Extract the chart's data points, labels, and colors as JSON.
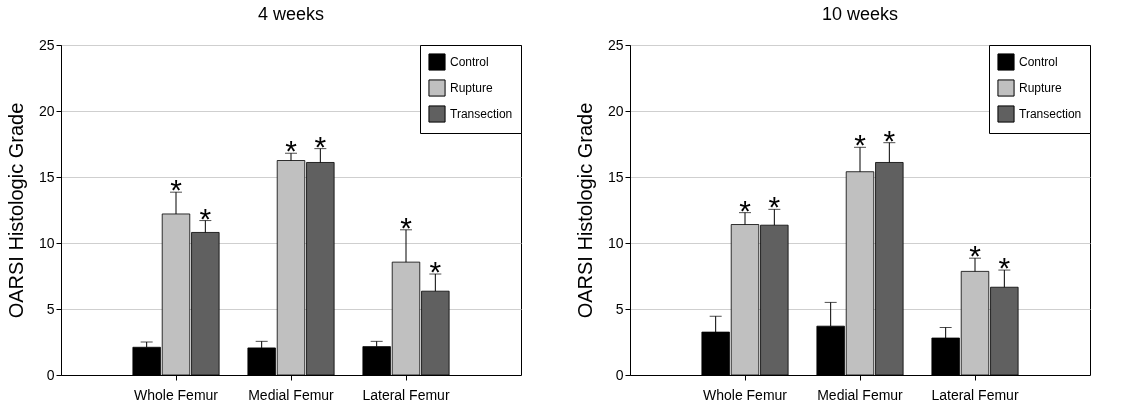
{
  "chart_data": [
    {
      "type": "bar",
      "title": "4 weeks",
      "ylabel": "OARSI Histologic Grade",
      "categories": [
        "Whole Femur",
        "Medial Femur",
        "Lateral Femur"
      ],
      "series": [
        {
          "name": "Control",
          "color": "#000000",
          "values": [
            2.1,
            2.05,
            2.15
          ],
          "errors": [
            [
              2.1,
              2.5
            ],
            [
              2.05,
              2.55
            ],
            [
              2.15,
              2.55
            ]
          ]
        },
        {
          "name": "Rupture",
          "color": "#c0c0c0",
          "values": [
            12.2,
            16.25,
            8.55
          ],
          "errors": [
            [
              12.2,
              13.85
            ],
            [
              16.25,
              16.8
            ],
            [
              8.55,
              11.0
            ]
          ]
        },
        {
          "name": "Transection",
          "color": "#606060",
          "values": [
            10.8,
            16.1,
            6.35
          ],
          "errors": [
            [
              10.8,
              11.7
            ],
            [
              16.1,
              17.15
            ],
            [
              6.35,
              7.65
            ]
          ]
        }
      ],
      "ylim": [
        0,
        25
      ],
      "yticks": [
        0,
        5,
        10,
        15,
        20,
        25
      ],
      "grid": "y",
      "legend": "top right",
      "annotations": [
        "*",
        "*",
        "*",
        "*",
        "*",
        "*"
      ]
    },
    {
      "type": "bar",
      "title": "10 weeks",
      "ylabel": "OARSI Histologic Grade",
      "categories": [
        "Whole Femur",
        "Medial Femur",
        "Lateral Femur"
      ],
      "series": [
        {
          "name": "Control",
          "color": "#000000",
          "values": [
            3.25,
            3.7,
            2.8
          ],
          "errors": [
            [
              3.25,
              4.45
            ],
            [
              3.7,
              5.5
            ],
            [
              2.8,
              3.6
            ]
          ]
        },
        {
          "name": "Rupture",
          "color": "#c0c0c0",
          "values": [
            11.4,
            15.4,
            7.85
          ],
          "errors": [
            [
              11.4,
              12.3
            ],
            [
              15.4,
              17.25
            ],
            [
              7.85,
              8.85
            ]
          ]
        },
        {
          "name": "Transection",
          "color": "#606060",
          "values": [
            11.35,
            16.1,
            6.65
          ],
          "errors": [
            [
              11.35,
              12.55
            ],
            [
              16.1,
              17.6
            ],
            [
              6.65,
              7.95
            ]
          ]
        }
      ],
      "ylim": [
        0,
        25
      ],
      "yticks": [
        0,
        5,
        10,
        15,
        20,
        25
      ],
      "grid": "y",
      "legend": "top right",
      "annotations": [
        "*",
        "*",
        "*",
        "*",
        "*",
        "*"
      ]
    }
  ]
}
